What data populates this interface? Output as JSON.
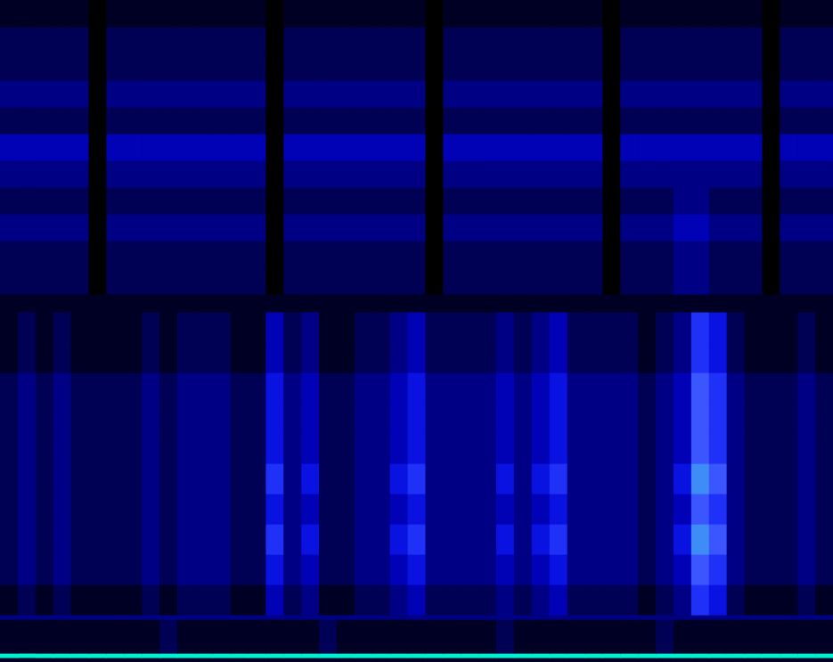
{
  "chart_data": {
    "type": "heatmap",
    "x_bins": [
      0,
      1,
      2,
      3,
      4,
      5,
      6,
      7,
      8,
      9,
      10,
      11,
      12,
      13,
      14,
      15,
      16,
      17,
      18,
      19,
      20,
      21,
      22,
      23,
      24,
      25,
      26,
      27,
      28,
      29,
      30,
      31,
      32,
      33,
      34,
      35,
      36,
      37,
      38,
      39,
      40,
      41,
      42,
      43,
      44,
      45,
      46,
      47
    ],
    "y_bins": [
      0,
      5,
      10,
      48,
      53,
      87,
      121,
      155,
      189,
      223,
      257,
      291,
      325,
      359,
      393,
      413,
      443,
      473,
      503,
      533,
      563,
      593,
      623,
      653,
      683,
      713,
      743
    ],
    "xlim": [
      0,
      47
    ],
    "ylim": [
      0,
      743
    ],
    "value_range": [
      0,
      9
    ],
    "colors": [
      "#000000",
      "#000030",
      "#000070",
      "#0000b0",
      "#0a14e6",
      "#2a40ff",
      "#5070ff",
      "#00f0d0"
    ],
    "tick_labels": false,
    "grid": false,
    "values": [
      [
        1,
        1,
        1,
        1,
        1,
        1,
        1,
        1,
        1,
        1,
        1,
        1,
        1,
        1,
        1,
        1,
        1,
        1,
        1,
        1,
        1,
        1,
        1,
        1,
        1,
        1,
        1,
        1,
        1,
        1,
        1,
        1,
        1,
        1,
        1,
        1,
        1,
        1,
        1,
        1,
        1,
        1,
        1,
        1,
        1,
        1,
        1
      ],
      [
        9,
        9,
        9,
        9,
        9,
        9,
        9,
        9,
        9,
        9,
        9,
        9,
        9,
        9,
        9,
        9,
        9,
        9,
        9,
        9,
        9,
        9,
        9,
        9,
        9,
        9,
        9,
        9,
        9,
        9,
        9,
        9,
        9,
        9,
        9,
        9,
        9,
        9,
        9,
        9,
        9,
        9,
        9,
        9,
        9,
        9,
        9
      ],
      [
        1,
        1,
        1,
        1,
        1,
        1,
        1,
        1,
        1,
        2,
        1,
        1,
        1,
        1,
        1,
        1,
        1,
        1,
        2,
        1,
        1,
        1,
        1,
        1,
        1,
        1,
        1,
        1,
        2,
        1,
        1,
        1,
        1,
        1,
        1,
        1,
        1,
        2,
        1,
        1,
        1,
        1,
        1,
        1,
        1,
        1,
        1
      ],
      [
        3,
        3,
        3,
        3,
        3,
        3,
        3,
        3,
        3,
        3,
        3,
        3,
        3,
        3,
        3,
        3,
        3,
        3,
        3,
        3,
        3,
        3,
        3,
        3,
        3,
        3,
        3,
        3,
        3,
        3,
        3,
        3,
        3,
        3,
        3,
        3,
        3,
        3,
        3,
        3,
        3,
        3,
        3,
        3,
        3,
        3,
        3
      ],
      [
        1,
        2,
        1,
        2,
        1,
        1,
        1,
        1,
        2,
        1,
        2,
        2,
        2,
        1,
        1,
        4,
        2,
        3,
        1,
        1,
        2,
        2,
        3,
        4,
        2,
        2,
        2,
        2,
        3,
        2,
        3,
        4,
        2,
        2,
        2,
        2,
        1,
        2,
        3,
        6,
        5,
        2,
        1,
        1,
        1,
        2,
        1
      ],
      [
        2,
        3,
        2,
        3,
        2,
        2,
        2,
        2,
        3,
        2,
        3,
        3,
        3,
        2,
        2,
        5,
        3,
        4,
        2,
        2,
        3,
        3,
        4,
        5,
        3,
        3,
        3,
        3,
        4,
        3,
        4,
        5,
        3,
        3,
        3,
        3,
        2,
        3,
        4,
        7,
        6,
        3,
        2,
        2,
        2,
        3,
        2
      ],
      [
        2,
        3,
        2,
        3,
        2,
        2,
        2,
        2,
        3,
        2,
        3,
        3,
        3,
        2,
        2,
        6,
        3,
        5,
        2,
        2,
        3,
        3,
        5,
        6,
        3,
        3,
        3,
        3,
        5,
        3,
        5,
        6,
        3,
        3,
        3,
        3,
        2,
        3,
        5,
        8,
        7,
        3,
        2,
        2,
        2,
        3,
        2
      ],
      [
        2,
        3,
        2,
        3,
        2,
        2,
        2,
        2,
        3,
        2,
        3,
        3,
        3,
        2,
        2,
        5,
        3,
        4,
        2,
        2,
        3,
        3,
        4,
        5,
        3,
        3,
        3,
        3,
        4,
        3,
        4,
        5,
        3,
        3,
        3,
        3,
        2,
        3,
        4,
        7,
        6,
        3,
        2,
        2,
        2,
        3,
        2
      ],
      [
        2,
        3,
        2,
        3,
        2,
        2,
        2,
        2,
        3,
        2,
        3,
        3,
        3,
        2,
        2,
        6,
        3,
        5,
        2,
        2,
        3,
        3,
        5,
        6,
        3,
        3,
        3,
        3,
        5,
        3,
        5,
        6,
        3,
        3,
        3,
        3,
        2,
        3,
        5,
        8,
        7,
        3,
        2,
        2,
        2,
        3,
        2
      ],
      [
        2,
        3,
        2,
        3,
        2,
        2,
        2,
        2,
        3,
        2,
        3,
        3,
        3,
        2,
        2,
        5,
        3,
        4,
        2,
        2,
        3,
        3,
        4,
        5,
        3,
        3,
        3,
        3,
        4,
        3,
        4,
        5,
        3,
        3,
        3,
        3,
        2,
        3,
        4,
        7,
        6,
        3,
        2,
        2,
        2,
        3,
        2
      ],
      [
        2,
        3,
        2,
        3,
        2,
        2,
        2,
        2,
        3,
        2,
        3,
        3,
        3,
        2,
        2,
        5,
        3,
        4,
        2,
        2,
        3,
        3,
        4,
        5,
        3,
        3,
        3,
        3,
        4,
        3,
        4,
        5,
        3,
        3,
        3,
        3,
        2,
        3,
        4,
        7,
        6,
        3,
        2,
        2,
        2,
        3,
        2
      ],
      [
        2,
        3,
        2,
        3,
        2,
        2,
        2,
        2,
        3,
        2,
        3,
        3,
        3,
        2,
        2,
        5,
        3,
        4,
        2,
        2,
        3,
        3,
        4,
        5,
        3,
        3,
        3,
        3,
        4,
        3,
        4,
        5,
        3,
        3,
        3,
        3,
        2,
        3,
        4,
        7,
        6,
        3,
        2,
        2,
        2,
        3,
        2
      ],
      [
        1,
        2,
        1,
        2,
        1,
        1,
        1,
        1,
        2,
        1,
        2,
        2,
        2,
        1,
        1,
        4,
        2,
        3,
        1,
        1,
        2,
        2,
        3,
        4,
        2,
        2,
        2,
        2,
        3,
        2,
        3,
        4,
        2,
        2,
        2,
        2,
        1,
        2,
        3,
        6,
        5,
        2,
        1,
        1,
        1,
        2,
        1
      ],
      [
        1,
        2,
        1,
        2,
        1,
        1,
        1,
        1,
        2,
        1,
        2,
        2,
        2,
        1,
        1,
        4,
        2,
        3,
        1,
        1,
        2,
        2,
        3,
        4,
        2,
        2,
        2,
        2,
        3,
        2,
        3,
        4,
        2,
        2,
        2,
        2,
        1,
        2,
        3,
        6,
        5,
        2,
        1,
        1,
        1,
        2,
        1
      ],
      [
        1,
        1,
        1,
        1,
        1,
        1,
        1,
        1,
        1,
        1,
        1,
        1,
        1,
        1,
        1,
        1,
        1,
        1,
        1,
        1,
        1,
        1,
        1,
        1,
        1,
        1,
        1,
        1,
        1,
        1,
        1,
        1,
        1,
        1,
        1,
        1,
        1,
        1,
        1,
        1,
        1,
        1,
        1,
        1,
        1,
        1,
        1
      ],
      [
        2,
        2,
        2,
        2,
        2,
        0,
        2,
        2,
        2,
        2,
        2,
        2,
        2,
        2,
        2,
        0,
        2,
        2,
        2,
        2,
        2,
        2,
        2,
        2,
        0,
        2,
        2,
        2,
        2,
        2,
        2,
        2,
        2,
        2,
        0,
        2,
        2,
        2,
        3,
        3,
        2,
        2,
        2,
        0,
        2,
        2,
        2
      ],
      [
        2,
        2,
        2,
        2,
        2,
        0,
        2,
        2,
        2,
        2,
        2,
        2,
        2,
        2,
        2,
        0,
        2,
        2,
        2,
        2,
        2,
        2,
        2,
        2,
        0,
        2,
        2,
        2,
        2,
        2,
        2,
        2,
        2,
        2,
        0,
        2,
        2,
        2,
        3,
        3,
        2,
        2,
        2,
        0,
        2,
        2,
        2
      ],
      [
        3,
        3,
        3,
        3,
        3,
        0,
        3,
        3,
        3,
        3,
        3,
        3,
        3,
        3,
        3,
        0,
        3,
        3,
        3,
        3,
        3,
        3,
        3,
        3,
        0,
        3,
        3,
        3,
        3,
        3,
        3,
        3,
        3,
        3,
        0,
        3,
        3,
        3,
        4,
        4,
        3,
        3,
        3,
        0,
        3,
        3,
        3
      ],
      [
        2,
        2,
        2,
        2,
        2,
        0,
        2,
        2,
        2,
        2,
        2,
        2,
        2,
        2,
        2,
        0,
        2,
        2,
        2,
        2,
        2,
        2,
        2,
        2,
        0,
        2,
        2,
        2,
        2,
        2,
        2,
        2,
        2,
        2,
        0,
        2,
        2,
        2,
        3,
        3,
        2,
        2,
        2,
        0,
        2,
        2,
        2
      ],
      [
        3,
        3,
        3,
        3,
        3,
        0,
        3,
        3,
        3,
        3,
        3,
        3,
        3,
        3,
        3,
        0,
        3,
        3,
        3,
        3,
        3,
        3,
        3,
        3,
        0,
        3,
        3,
        3,
        3,
        3,
        3,
        3,
        3,
        3,
        0,
        3,
        3,
        3,
        3,
        3,
        3,
        3,
        3,
        0,
        3,
        3,
        3
      ],
      [
        4,
        4,
        4,
        4,
        4,
        0,
        4,
        4,
        4,
        4,
        4,
        4,
        4,
        4,
        4,
        0,
        4,
        4,
        4,
        4,
        4,
        4,
        4,
        4,
        0,
        4,
        4,
        4,
        4,
        4,
        4,
        4,
        4,
        4,
        0,
        4,
        4,
        4,
        4,
        4,
        4,
        4,
        4,
        0,
        4,
        4,
        4
      ],
      [
        2,
        2,
        2,
        2,
        2,
        0,
        2,
        2,
        2,
        2,
        2,
        2,
        2,
        2,
        2,
        0,
        2,
        2,
        2,
        2,
        2,
        2,
        2,
        2,
        0,
        2,
        2,
        2,
        2,
        2,
        2,
        2,
        2,
        2,
        0,
        2,
        2,
        2,
        2,
        2,
        2,
        2,
        2,
        0,
        2,
        2,
        2
      ],
      [
        3,
        3,
        3,
        3,
        3,
        0,
        3,
        3,
        3,
        3,
        3,
        3,
        3,
        3,
        3,
        0,
        3,
        3,
        3,
        3,
        3,
        3,
        3,
        3,
        0,
        3,
        3,
        3,
        3,
        3,
        3,
        3,
        3,
        3,
        0,
        3,
        3,
        3,
        3,
        3,
        3,
        3,
        3,
        0,
        3,
        3,
        3
      ],
      [
        2,
        2,
        2,
        2,
        2,
        0,
        2,
        2,
        2,
        2,
        2,
        2,
        2,
        2,
        2,
        0,
        2,
        2,
        2,
        2,
        2,
        2,
        2,
        2,
        0,
        2,
        2,
        2,
        2,
        2,
        2,
        2,
        2,
        2,
        0,
        2,
        2,
        2,
        2,
        2,
        2,
        2,
        2,
        0,
        2,
        2,
        2
      ],
      [
        2,
        2,
        2,
        2,
        2,
        0,
        2,
        2,
        2,
        2,
        2,
        2,
        2,
        2,
        2,
        0,
        2,
        2,
        2,
        2,
        2,
        2,
        2,
        2,
        0,
        2,
        2,
        2,
        2,
        2,
        2,
        2,
        2,
        2,
        0,
        2,
        2,
        2,
        2,
        2,
        2,
        2,
        2,
        0,
        2,
        2,
        2
      ],
      [
        1,
        1,
        1,
        1,
        1,
        0,
        1,
        1,
        1,
        1,
        1,
        1,
        1,
        1,
        1,
        0,
        1,
        1,
        1,
        1,
        1,
        1,
        1,
        1,
        0,
        1,
        1,
        1,
        1,
        1,
        1,
        1,
        1,
        1,
        0,
        1,
        1,
        1,
        1,
        1,
        1,
        1,
        1,
        0,
        1,
        1,
        1
      ]
    ]
  }
}
